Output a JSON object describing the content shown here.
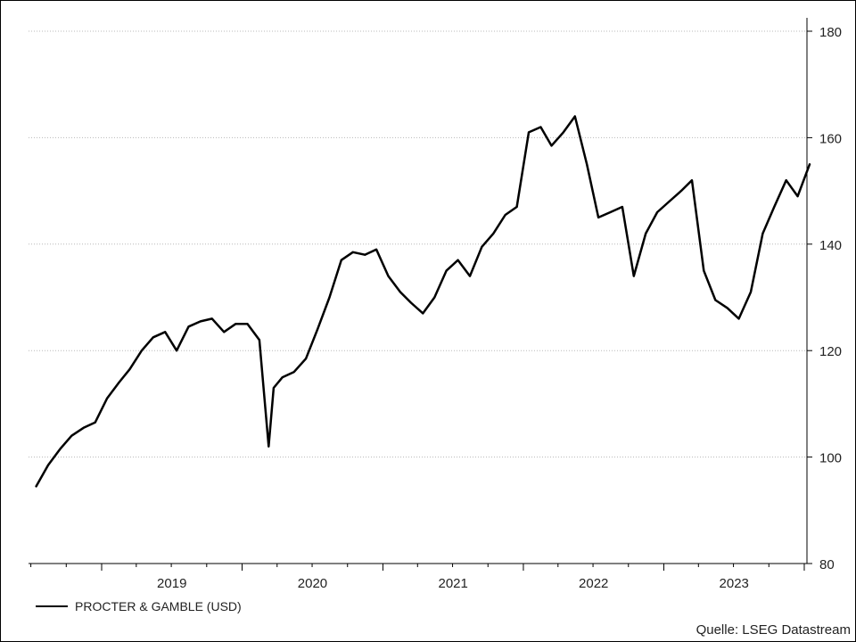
{
  "chart_data": {
    "type": "line",
    "x_labels": [
      "2019",
      "2020",
      "2021",
      "2022",
      "2023"
    ],
    "ylim": [
      80,
      180
    ],
    "yticks": [
      80,
      100,
      120,
      140,
      160,
      180
    ],
    "grid": "horizontal dotted",
    "series": [
      {
        "name": "PROCTER & GAMBLE (USD)",
        "color": "#000000",
        "x": [
          "2018-07",
          "2018-08",
          "2018-09",
          "2018-10",
          "2018-11",
          "2018-12",
          "2019-01",
          "2019-02",
          "2019-03",
          "2019-04",
          "2019-05",
          "2019-06",
          "2019-07",
          "2019-08",
          "2019-09",
          "2019-10",
          "2019-11",
          "2019-12",
          "2020-01",
          "2020-02",
          "2020-03-10",
          "2020-03-23",
          "2020-04",
          "2020-05",
          "2020-06",
          "2020-07",
          "2020-08",
          "2020-09",
          "2020-10",
          "2020-11",
          "2020-12",
          "2021-01",
          "2021-02",
          "2021-03",
          "2021-04",
          "2021-05",
          "2021-06",
          "2021-07",
          "2021-08",
          "2021-09",
          "2021-10",
          "2021-11",
          "2021-12",
          "2022-01",
          "2022-02",
          "2022-03",
          "2022-04",
          "2022-05",
          "2022-06",
          "2022-07",
          "2022-08",
          "2022-09",
          "2022-10",
          "2022-11",
          "2022-12",
          "2023-01",
          "2023-02",
          "2023-03",
          "2023-04",
          "2023-05",
          "2023-06",
          "2023-07",
          "2023-08",
          "2023-09",
          "2023-10",
          "2023-11",
          "2023-12",
          "2024-01"
        ],
        "y": [
          94.5,
          98.5,
          101.5,
          104,
          105.5,
          106.5,
          111,
          114,
          116.5,
          120,
          122.5,
          123.5,
          120,
          124.5,
          125.5,
          126,
          123.5,
          125,
          125,
          122,
          102,
          113,
          115,
          116,
          118.5,
          124,
          130,
          137,
          138.5,
          138,
          139,
          134,
          131,
          129,
          127,
          130,
          135,
          137,
          134,
          139.5,
          142,
          145.5,
          147,
          161,
          162,
          158.5,
          161,
          164,
          155,
          145,
          146,
          147,
          134,
          142,
          146,
          148,
          150,
          152,
          135,
          129.5,
          128,
          126,
          131,
          142,
          147,
          152,
          149,
          155
        ]
      }
    ]
  },
  "legend": {
    "label": "PROCTER & GAMBLE (USD)"
  },
  "source": "Quelle: LSEG Datastream"
}
